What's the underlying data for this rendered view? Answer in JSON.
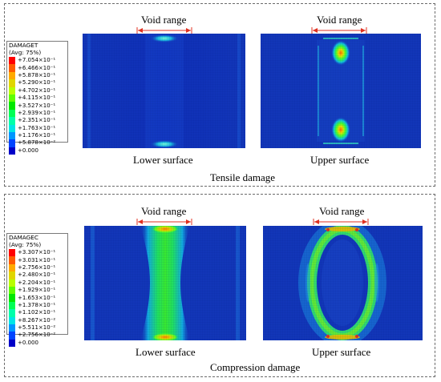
{
  "tensile": {
    "legend_title": "DAMAGET",
    "legend_avg": "(Avg: 75%)",
    "legend_values": [
      "+7.054×10⁻¹",
      "+6.466×10⁻¹",
      "+5.878×10⁻¹",
      "+5.290×10⁻¹",
      "+4.702×10⁻¹",
      "+4.115×10⁻¹",
      "+3.527×10⁻¹",
      "+2.939×10⁻¹",
      "+2.351×10⁻¹",
      "+1.763×10⁻¹",
      "+1.176×10⁻¹",
      "+5.878×10⁻²",
      "+0.000"
    ],
    "void_label_left": "Void range",
    "void_label_right": "Void range",
    "lower_label": "Lower surface",
    "upper_label": "Upper surface",
    "caption": "Tensile damage"
  },
  "compression": {
    "legend_title": "DAMAGEC",
    "legend_avg": "(Avg: 75%)",
    "legend_values": [
      "+3.307×10⁻¹",
      "+3.031×10⁻¹",
      "+2.756×10⁻¹",
      "+2.480×10⁻¹",
      "+2.204×10⁻¹",
      "+1.929×10⁻¹",
      "+1.653×10⁻¹",
      "+1.378×10⁻¹",
      "+1.102×10⁻¹",
      "+8.267×10⁻²",
      "+5.511×10⁻²",
      "+2.756×10⁻²",
      "+0.000"
    ],
    "void_label_left": "Void range",
    "void_label_right": "Void range",
    "lower_label": "Lower surface",
    "upper_label": "Upper surface",
    "caption": "Compression damage"
  },
  "colors": {
    "contour_scale": [
      "#ff0000",
      "#ff5a00",
      "#ffaa00",
      "#e0d600",
      "#b8ff00",
      "#5eff00",
      "#00e800",
      "#00ff55",
      "#00ffaa",
      "#00e6e6",
      "#0096ff",
      "#0044ff",
      "#0000c8"
    ],
    "background_field": "#1030c0",
    "void_arrow": "#e03020"
  }
}
